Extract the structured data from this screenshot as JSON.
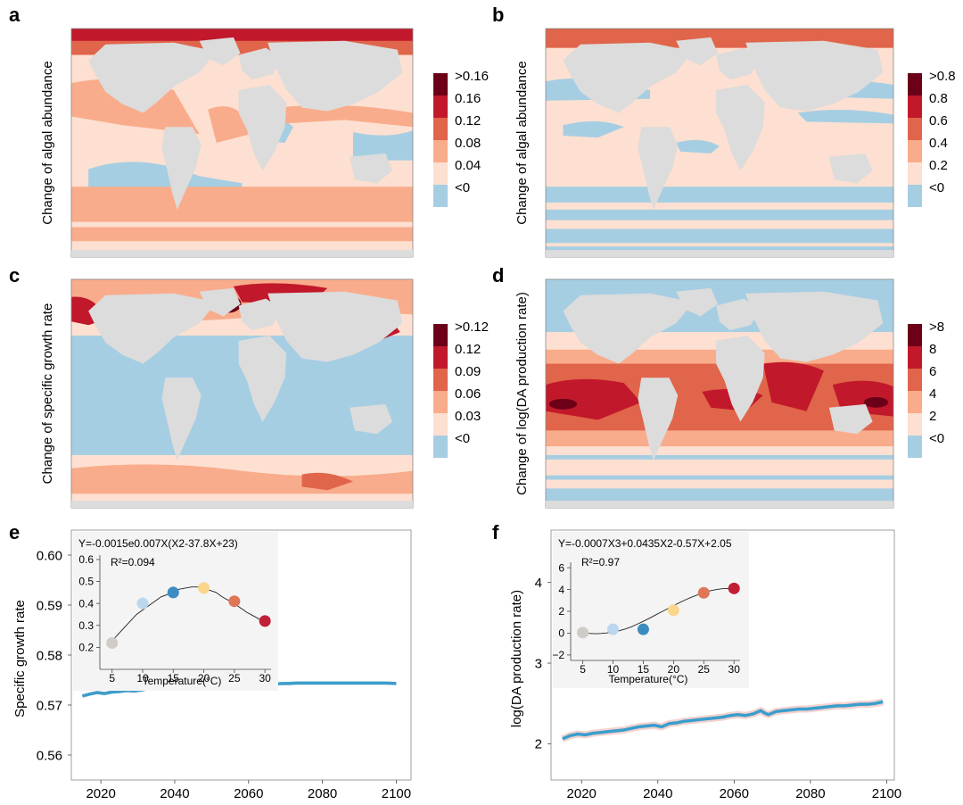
{
  "colors": {
    "land": "#dcdcdc",
    "neg": "#a6cee3",
    "scale": [
      "#a6cee3",
      "#fde0d1",
      "#f9ac8b",
      "#e0654a",
      "#c2182b",
      "#6b0018"
    ],
    "line": "#3a9ecd",
    "band": "#f4d2cf",
    "inset_bg": "#f4f4f4",
    "pts_e": [
      "#cfcbc6",
      "#bad7ee",
      "#3a8dc1",
      "#fad58c",
      "#e07658",
      "#c21e36"
    ],
    "pts_f": [
      "#cfcbc6",
      "#bad7ee",
      "#3a8dc1",
      "#fad58c",
      "#e07658",
      "#c21e36"
    ]
  },
  "maps": [
    {
      "letter": "a",
      "ylabel": "Change of algal abundance",
      "legend": [
        ">0.16",
        "0.16",
        "0.12",
        "0.08",
        "0.04",
        "<0"
      ]
    },
    {
      "letter": "b",
      "ylabel": "Change of algal abundance",
      "legend": [
        ">0.8",
        "0.8",
        "0.6",
        "0.4",
        "0.2",
        "<0"
      ]
    },
    {
      "letter": "c",
      "ylabel": "Change of specific growth rate",
      "legend": [
        ">0.12",
        "0.12",
        "0.09",
        "0.06",
        "0.03",
        "<0"
      ]
    },
    {
      "letter": "d",
      "ylabel": "Change of log(DA production rate)",
      "legend": [
        ">8",
        "8",
        "6",
        "4",
        "2",
        "<0"
      ]
    }
  ],
  "panels": {
    "e": {
      "letter": "e",
      "inset_equation": "Y=-0.0015e0.007X(X2-37.8X+23)",
      "inset_r2": "R²=0.094",
      "inset_xlabel": "Temperature(°C)"
    },
    "f": {
      "letter": "f",
      "inset_equation": "Y=-0.0007X3+0.0435X2-0.57X+2.05",
      "inset_r2": "R²=0.97",
      "inset_xlabel": "Temperature(°C)"
    }
  },
  "chart_data": [
    {
      "id": "e-main",
      "type": "line",
      "ylabel": "Specific growth rate",
      "xlabel": "",
      "xlim": [
        2012,
        2104
      ],
      "ylim": [
        0.555,
        0.605
      ],
      "xticks": [
        2020,
        2040,
        2060,
        2080,
        2100
      ],
      "yticks": [
        0.56,
        0.57,
        0.58,
        0.59,
        0.6
      ],
      "ytick_labels": [
        "0.56",
        "0.57",
        "0.58",
        "0.59",
        "0.60"
      ],
      "series": [
        {
          "name": "Specific growth rate",
          "x": [
            2015,
            2017,
            2019,
            2021,
            2023,
            2025,
            2027,
            2029,
            2031,
            2033,
            2035,
            2037,
            2039,
            2041,
            2043,
            2045,
            2047,
            2049,
            2051,
            2053,
            2055,
            2057,
            2059,
            2061,
            2063,
            2065,
            2067,
            2069,
            2071,
            2073,
            2075,
            2077,
            2079,
            2081,
            2083,
            2085,
            2087,
            2089,
            2091,
            2093,
            2095,
            2097,
            2100
          ],
          "y": [
            0.5718,
            0.5722,
            0.5725,
            0.5723,
            0.5726,
            0.5727,
            0.5729,
            0.5728,
            0.573,
            0.5733,
            0.5734,
            0.5735,
            0.5737,
            0.5736,
            0.5738,
            0.5739,
            0.5739,
            0.574,
            0.574,
            0.5741,
            0.5741,
            0.5741,
            0.5742,
            0.5742,
            0.5742,
            0.5743,
            0.5742,
            0.5743,
            0.5743,
            0.5744,
            0.5744,
            0.5744,
            0.5744,
            0.5744,
            0.5744,
            0.5744,
            0.5744,
            0.5744,
            0.5744,
            0.5744,
            0.5744,
            0.5744,
            0.5743
          ]
        }
      ]
    },
    {
      "id": "e-inset",
      "type": "scatter",
      "xlabel": "Temperature(°C)",
      "ylabel": "",
      "xlim": [
        3,
        31
      ],
      "ylim": [
        0.1,
        0.62
      ],
      "xticks": [
        5,
        10,
        15,
        20,
        25,
        30
      ],
      "yticks": [
        0.2,
        0.3,
        0.4,
        0.5,
        0.6
      ],
      "ytick_labels": [
        "0.2",
        "0.3",
        "0.4",
        "0.5",
        "0.6"
      ],
      "points": {
        "x": [
          5,
          10,
          15,
          20,
          25,
          30
        ],
        "y": [
          0.22,
          0.4,
          0.45,
          0.47,
          0.41,
          0.32
        ]
      },
      "fit": {
        "x": [
          5,
          6,
          7,
          8,
          9,
          10,
          11,
          12,
          13,
          14,
          15,
          16,
          17,
          18,
          19,
          20,
          21,
          22,
          23,
          24,
          25,
          26,
          27,
          28,
          29,
          30
        ],
        "y": [
          0.23,
          0.26,
          0.29,
          0.32,
          0.35,
          0.37,
          0.39,
          0.41,
          0.43,
          0.44,
          0.455,
          0.465,
          0.47,
          0.475,
          0.475,
          0.47,
          0.46,
          0.45,
          0.43,
          0.415,
          0.4,
          0.38,
          0.36,
          0.345,
          0.33,
          0.32
        ]
      }
    },
    {
      "id": "f-main",
      "type": "line",
      "ylabel": "log(DA production rate)",
      "xlabel": "",
      "xlim": [
        2012,
        2102
      ],
      "ylim": [
        1.55,
        4.65
      ],
      "xticks": [
        2020,
        2040,
        2060,
        2080,
        2100
      ],
      "yticks": [
        2,
        3,
        4
      ],
      "ytick_labels": [
        "2",
        "3",
        "4"
      ],
      "series": [
        {
          "name": "log(DA production rate)",
          "x": [
            2015,
            2017,
            2019,
            2021,
            2023,
            2025,
            2027,
            2029,
            2031,
            2033,
            2035,
            2037,
            2039,
            2041,
            2043,
            2045,
            2047,
            2049,
            2051,
            2053,
            2055,
            2057,
            2059,
            2061,
            2063,
            2065,
            2067,
            2068,
            2069,
            2071,
            2073,
            2075,
            2077,
            2079,
            2081,
            2083,
            2085,
            2087,
            2089,
            2091,
            2093,
            2095,
            2097,
            2099
          ],
          "y": [
            2.06,
            2.1,
            2.12,
            2.11,
            2.13,
            2.14,
            2.15,
            2.16,
            2.17,
            2.19,
            2.21,
            2.22,
            2.23,
            2.21,
            2.25,
            2.26,
            2.28,
            2.29,
            2.3,
            2.31,
            2.32,
            2.33,
            2.35,
            2.36,
            2.35,
            2.37,
            2.41,
            2.38,
            2.36,
            2.4,
            2.41,
            2.42,
            2.43,
            2.43,
            2.44,
            2.45,
            2.46,
            2.47,
            2.47,
            2.48,
            2.49,
            2.49,
            2.5,
            2.52
          ]
        }
      ]
    },
    {
      "id": "f-inset",
      "type": "scatter",
      "xlabel": "Temperature(°C)",
      "ylabel": "",
      "xlim": [
        3,
        31
      ],
      "ylim": [
        -2.5,
        6.5
      ],
      "xticks": [
        5,
        10,
        15,
        20,
        25,
        30
      ],
      "yticks": [
        -2,
        0,
        2,
        4,
        6
      ],
      "ytick_labels": [
        "−2",
        "0",
        "2",
        "4",
        "6"
      ],
      "points": {
        "x": [
          5,
          10,
          15,
          20,
          25,
          30
        ],
        "y": [
          0.05,
          0.35,
          0.35,
          2.1,
          3.7,
          4.1
        ]
      },
      "fit": {
        "x": [
          5,
          6,
          7,
          8,
          9,
          10,
          11,
          12,
          13,
          14,
          15,
          16,
          17,
          18,
          19,
          20,
          21,
          22,
          23,
          24,
          25,
          26,
          27,
          28,
          29,
          30
        ],
        "y": [
          0.05,
          -0.02,
          -0.05,
          -0.03,
          0.02,
          0.1,
          0.22,
          0.38,
          0.58,
          0.82,
          1.08,
          1.36,
          1.66,
          1.95,
          2.24,
          2.52,
          2.8,
          3.06,
          3.3,
          3.52,
          3.71,
          3.87,
          3.99,
          4.07,
          4.1,
          4.08
        ]
      }
    }
  ]
}
